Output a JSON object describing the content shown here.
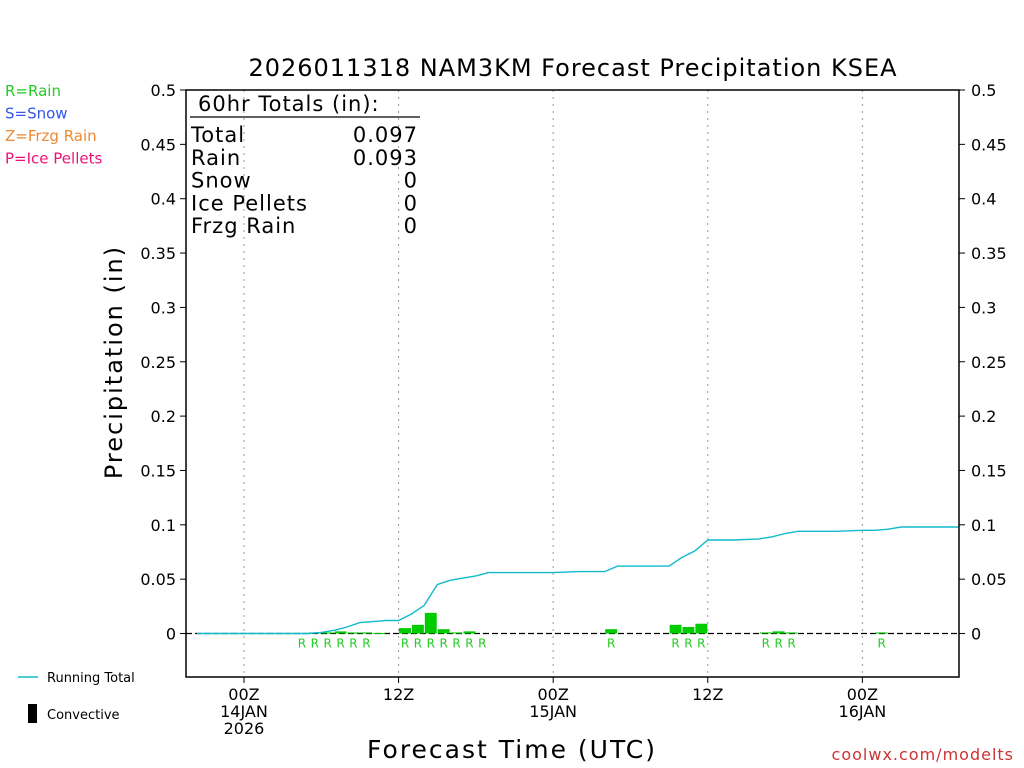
{
  "chart_data": {
    "type": "bar",
    "title": "2026011318 NAM3KM Forecast Precipitation KSEA",
    "ylabel": "Precipitation (in)",
    "xlabel": "Forecast Time (UTC)",
    "ylim": [
      -0.04,
      0.5
    ],
    "xlim_hours": [
      -4.5,
      55.5
    ],
    "yticks": [
      0,
      0.05,
      0.1,
      0.15,
      0.2,
      0.25,
      0.3,
      0.35,
      0.4,
      0.45,
      0.5
    ],
    "ytick_labels": [
      "0",
      "0.05",
      "0.1",
      "0.15",
      "0.2",
      "0.25",
      "0.3",
      "0.35",
      "0.4",
      "0.45",
      "0.5"
    ],
    "xticks": [
      {
        "hour": 0,
        "lines": [
          "00Z",
          "14JAN",
          "2026"
        ]
      },
      {
        "hour": 12,
        "lines": [
          "12Z"
        ]
      },
      {
        "hour": 24,
        "lines": [
          "00Z",
          "15JAN"
        ]
      },
      {
        "hour": 36,
        "lines": [
          "12Z"
        ]
      },
      {
        "hour": 48,
        "lines": [
          "00Z",
          "16JAN"
        ]
      }
    ],
    "totals": {
      "heading": "60hr Totals (in):",
      "rows": [
        {
          "label": "Total",
          "value": "0.097"
        },
        {
          "label": "Rain",
          "value": "0.093"
        },
        {
          "label": "Snow",
          "value": "0"
        },
        {
          "label": "Ice Pellets",
          "value": "0"
        },
        {
          "label": "Frzg Rain",
          "value": "0"
        }
      ]
    },
    "ptype_legend": [
      {
        "text": "R=Rain",
        "color": "#22cc22"
      },
      {
        "text": "S=Snow",
        "color": "#3355ee"
      },
      {
        "text": "Z=Frzg Rain",
        "color": "#ee8833"
      },
      {
        "text": "P=Ice Pellets",
        "color": "#ee1177"
      }
    ],
    "bottom_legend": {
      "running_total_label": "Running Total",
      "running_total_color": "#11bbcc",
      "convective_label": "Convective"
    },
    "series": [
      {
        "name": "Hourly Precipitation (Rain)",
        "color": "#00cc00",
        "bars": [
          {
            "hour": 6,
            "value": 0.001
          },
          {
            "hour": 7,
            "value": 0.001
          },
          {
            "hour": 8,
            "value": 0.002
          },
          {
            "hour": 9,
            "value": 0.001
          },
          {
            "hour": 10,
            "value": 0.001
          },
          {
            "hour": 11,
            "value": 0.0005
          },
          {
            "hour": 13,
            "value": 0.005
          },
          {
            "hour": 14,
            "value": 0.008
          },
          {
            "hour": 15,
            "value": 0.019
          },
          {
            "hour": 16,
            "value": 0.004
          },
          {
            "hour": 17,
            "value": 0.001
          },
          {
            "hour": 18,
            "value": 0.002
          },
          {
            "hour": 29,
            "value": 0.004
          },
          {
            "hour": 34,
            "value": 0.008
          },
          {
            "hour": 35,
            "value": 0.006
          },
          {
            "hour": 36,
            "value": 0.009
          },
          {
            "hour": 41,
            "value": 0.001
          },
          {
            "hour": 42,
            "value": 0.002
          },
          {
            "hour": 43,
            "value": 0.001
          },
          {
            "hour": 50,
            "value": 0.001
          }
        ]
      },
      {
        "name": "Running Total",
        "color": "#11bbcc",
        "points": [
          [
            -5,
            0
          ],
          [
            0,
            0
          ],
          [
            4,
            0
          ],
          [
            5,
            0
          ],
          [
            6,
            0.001
          ],
          [
            7,
            0.003
          ],
          [
            8,
            0.006
          ],
          [
            9,
            0.01
          ],
          [
            10,
            0.011
          ],
          [
            11,
            0.012
          ],
          [
            12,
            0.012
          ],
          [
            13,
            0.018
          ],
          [
            14,
            0.026
          ],
          [
            15,
            0.045
          ],
          [
            16,
            0.049
          ],
          [
            17,
            0.051
          ],
          [
            18,
            0.053
          ],
          [
            19,
            0.056
          ],
          [
            20,
            0.056
          ],
          [
            24,
            0.056
          ],
          [
            26,
            0.057
          ],
          [
            28,
            0.057
          ],
          [
            29,
            0.062
          ],
          [
            30,
            0.062
          ],
          [
            33,
            0.062
          ],
          [
            34,
            0.07
          ],
          [
            35,
            0.076
          ],
          [
            36,
            0.086
          ],
          [
            38,
            0.086
          ],
          [
            40,
            0.087
          ],
          [
            41,
            0.089
          ],
          [
            42,
            0.092
          ],
          [
            43,
            0.094
          ],
          [
            45,
            0.094
          ],
          [
            46,
            0.094
          ],
          [
            48,
            0.095
          ],
          [
            49,
            0.095
          ],
          [
            50,
            0.096
          ],
          [
            51,
            0.098
          ],
          [
            53,
            0.098
          ],
          [
            55.5,
            0.098
          ]
        ]
      }
    ],
    "ptype_marks": [
      {
        "hour": 5,
        "letter": "R"
      },
      {
        "hour": 6,
        "letter": "R"
      },
      {
        "hour": 7,
        "letter": "R"
      },
      {
        "hour": 8,
        "letter": "R"
      },
      {
        "hour": 9,
        "letter": "R"
      },
      {
        "hour": 10,
        "letter": "R"
      },
      {
        "hour": 13,
        "letter": "R"
      },
      {
        "hour": 14,
        "letter": "R"
      },
      {
        "hour": 15,
        "letter": "R"
      },
      {
        "hour": 16,
        "letter": "R"
      },
      {
        "hour": 17,
        "letter": "R"
      },
      {
        "hour": 18,
        "letter": "R"
      },
      {
        "hour": 19,
        "letter": "R"
      },
      {
        "hour": 29,
        "letter": "R"
      },
      {
        "hour": 34,
        "letter": "R"
      },
      {
        "hour": 35,
        "letter": "R"
      },
      {
        "hour": 36,
        "letter": "R"
      },
      {
        "hour": 41,
        "letter": "R"
      },
      {
        "hour": 42,
        "letter": "R"
      },
      {
        "hour": 43,
        "letter": "R"
      },
      {
        "hour": 50,
        "letter": "R"
      }
    ]
  },
  "footer": {
    "credit": "coolwx.com/modelts",
    "credit_color": "#cc3333"
  }
}
